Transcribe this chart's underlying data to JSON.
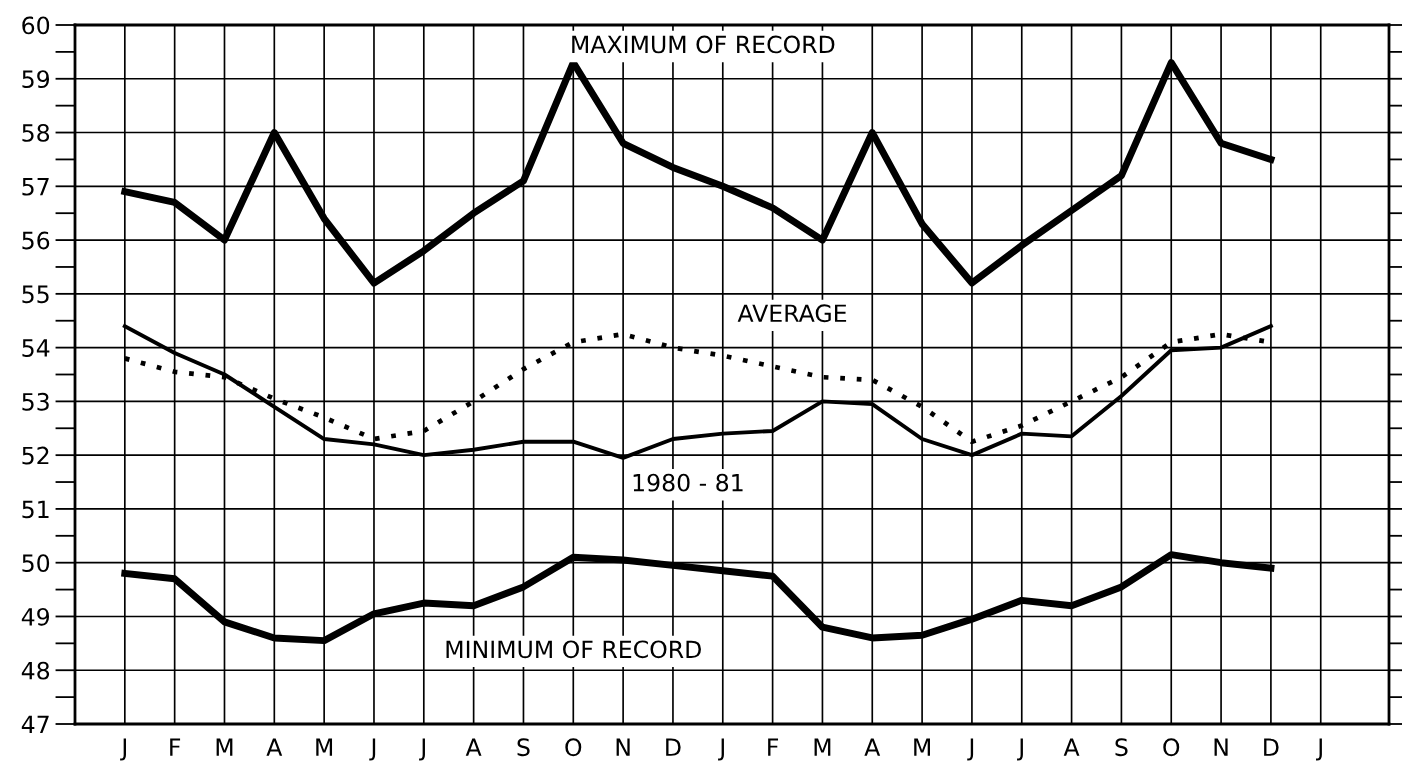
{
  "chart_data": {
    "type": "line",
    "categories": [
      "J",
      "F",
      "M",
      "A",
      "M",
      "J",
      "J",
      "A",
      "S",
      "O",
      "N",
      "D",
      "J",
      "F",
      "M",
      "A",
      "M",
      "J",
      "J",
      "A",
      "S",
      "O",
      "N",
      "D",
      "J"
    ],
    "series": [
      {
        "name": "MAXIMUM OF RECORD",
        "color": "#000000",
        "line_style": "solid",
        "values": [
          56.9,
          56.7,
          56.0,
          58.0,
          56.4,
          55.2,
          55.8,
          56.5,
          57.1,
          59.3,
          57.8,
          57.35,
          57.0,
          56.6,
          56.0,
          58.0,
          56.3,
          55.2,
          55.9,
          56.55,
          57.2,
          59.3,
          57.8,
          57.5,
          null
        ]
      },
      {
        "name": "AVERAGE",
        "color": "#000000",
        "line_style": "dotted",
        "values": [
          53.8,
          53.55,
          53.45,
          53.05,
          52.7,
          52.3,
          52.45,
          53.0,
          53.6,
          54.1,
          54.25,
          54.0,
          53.85,
          53.65,
          53.45,
          53.4,
          52.9,
          52.25,
          52.55,
          53.0,
          53.45,
          54.1,
          54.25,
          54.1,
          null
        ]
      },
      {
        "name": "1980 - 81",
        "color": "#000000",
        "line_style": "solid",
        "values": [
          54.4,
          53.9,
          53.5,
          52.9,
          52.3,
          52.2,
          52.0,
          52.1,
          52.25,
          52.25,
          51.95,
          52.3,
          52.4,
          52.45,
          53.0,
          52.95,
          52.3,
          52.0,
          52.4,
          52.35,
          53.1,
          53.95,
          54.0,
          54.4,
          null
        ]
      },
      {
        "name": "MINIMUM OF RECORD",
        "color": "#000000",
        "line_style": "solid",
        "values": [
          49.8,
          49.7,
          48.9,
          48.6,
          48.55,
          49.05,
          49.25,
          49.2,
          49.55,
          50.1,
          50.05,
          49.95,
          49.85,
          49.75,
          48.8,
          48.6,
          48.65,
          48.95,
          49.3,
          49.2,
          49.55,
          50.15,
          50.0,
          49.9,
          null
        ]
      }
    ],
    "ylim": [
      47,
      60
    ],
    "yticks": [
      47,
      48,
      49,
      50,
      51,
      52,
      53,
      54,
      55,
      56,
      57,
      58,
      59,
      60
    ],
    "grid": true,
    "marker": "none",
    "legend": false
  }
}
